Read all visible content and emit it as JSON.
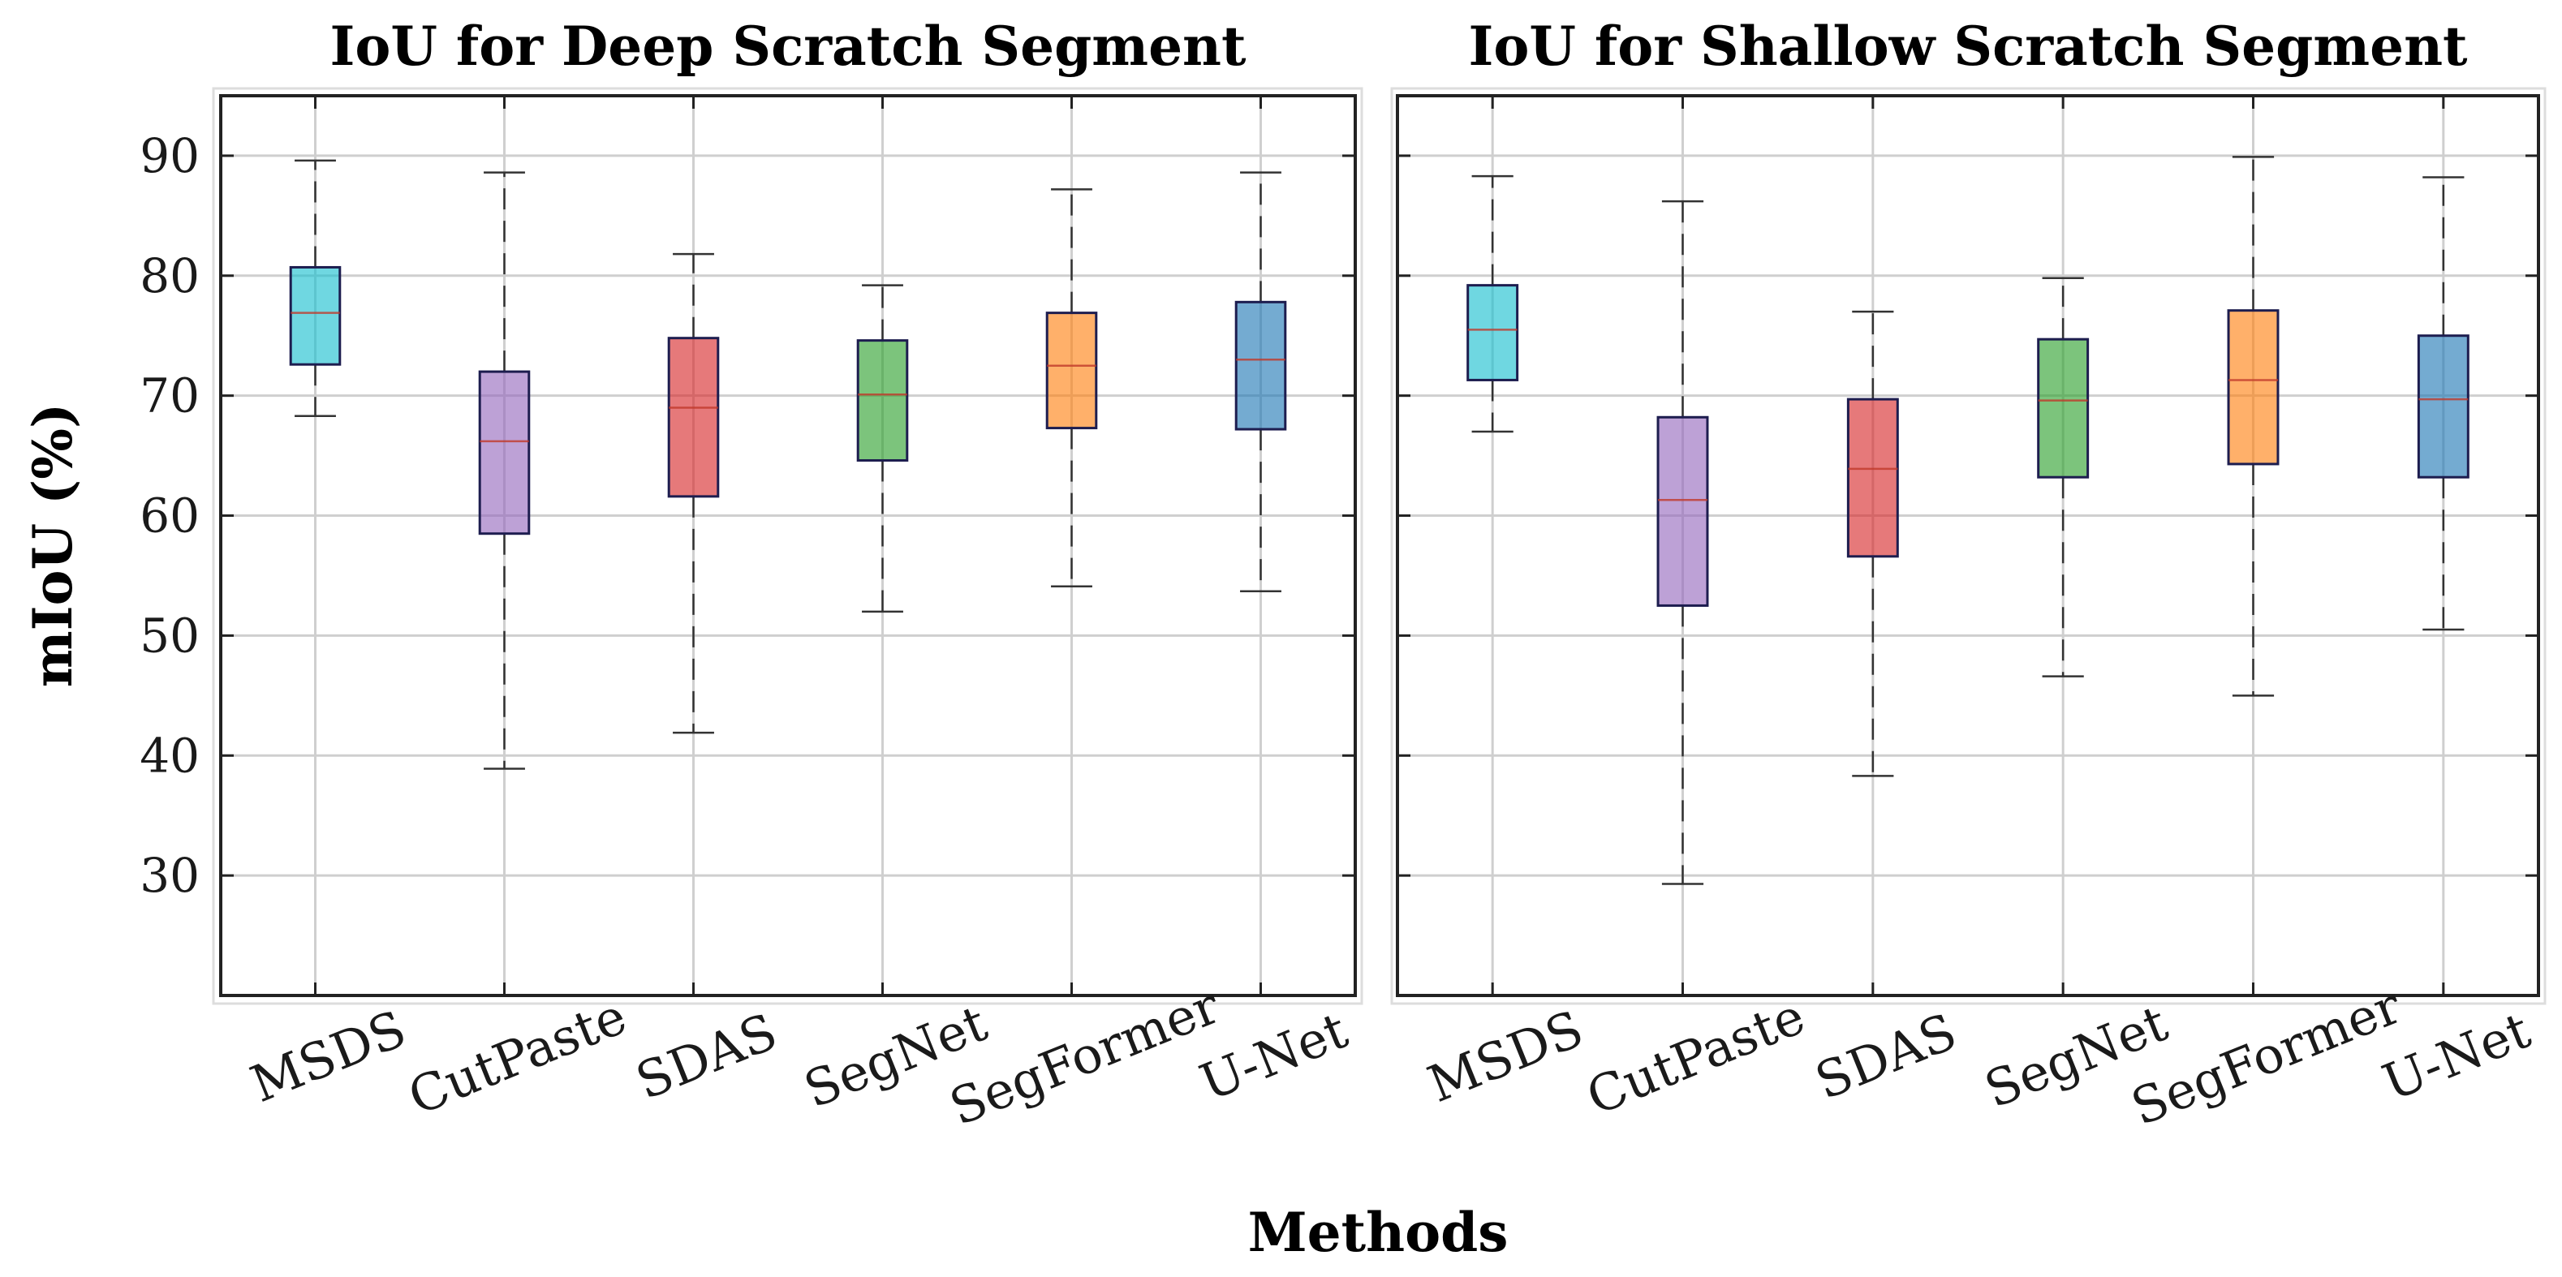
{
  "chart_data": [
    {
      "type": "box",
      "title": "IoU for Deep Scratch Segment",
      "xlabel": "Methods",
      "ylabel": "mIoU (%)",
      "ylim": [
        20,
        95
      ],
      "yticks": [
        30,
        40,
        50,
        60,
        70,
        80,
        90
      ],
      "grid": true,
      "categories": [
        "MSDS",
        "CutPaste",
        "SDAS",
        "SegNet",
        "SegFormer",
        "U-Net"
      ],
      "series": [
        {
          "name": "MSDS",
          "color": "#17becf",
          "median_color": "#c0392b",
          "min": 68.3,
          "q1": 72.6,
          "median": 76.9,
          "q3": 80.7,
          "max": 89.6
        },
        {
          "name": "CutPaste",
          "color": "#9467bd",
          "median_color": "#c0392b",
          "min": 38.9,
          "q1": 58.5,
          "median": 66.2,
          "q3": 72.0,
          "max": 88.6
        },
        {
          "name": "SDAS",
          "color": "#d62728",
          "median_color": "#c0392b",
          "min": 41.9,
          "q1": 61.6,
          "median": 69.0,
          "q3": 74.8,
          "max": 81.8
        },
        {
          "name": "SegNet",
          "color": "#2ca02c",
          "median_color": "#c0392b",
          "min": 52.0,
          "q1": 64.6,
          "median": 70.1,
          "q3": 74.6,
          "max": 79.2
        },
        {
          "name": "SegFormer",
          "color": "#ff7f0e",
          "median_color": "#c0392b",
          "min": 54.1,
          "q1": 67.3,
          "median": 72.5,
          "q3": 76.9,
          "max": 87.2
        },
        {
          "name": "U-Net",
          "color": "#1f77b4",
          "median_color": "#c0392b",
          "min": 53.7,
          "q1": 67.2,
          "median": 73.0,
          "q3": 77.8,
          "max": 88.6
        }
      ]
    },
    {
      "type": "box",
      "title": "IoU for Shallow Scratch Segment",
      "xlabel": "Methods",
      "ylabel": "mIoU (%)",
      "ylim": [
        20,
        95
      ],
      "yticks": [
        30,
        40,
        50,
        60,
        70,
        80,
        90
      ],
      "grid": true,
      "categories": [
        "MSDS",
        "CutPaste",
        "SDAS",
        "SegNet",
        "SegFormer",
        "U-Net"
      ],
      "series": [
        {
          "name": "MSDS",
          "color": "#17becf",
          "median_color": "#c0392b",
          "min": 67.0,
          "q1": 71.3,
          "median": 75.5,
          "q3": 79.2,
          "max": 88.3
        },
        {
          "name": "CutPaste",
          "color": "#9467bd",
          "median_color": "#c0392b",
          "min": 29.3,
          "q1": 52.5,
          "median": 61.3,
          "q3": 68.2,
          "max": 86.2
        },
        {
          "name": "SDAS",
          "color": "#d62728",
          "median_color": "#c0392b",
          "min": 38.3,
          "q1": 56.6,
          "median": 63.9,
          "q3": 69.7,
          "max": 77.0
        },
        {
          "name": "SegNet",
          "color": "#2ca02c",
          "median_color": "#c0392b",
          "min": 46.6,
          "q1": 63.2,
          "median": 69.6,
          "q3": 74.7,
          "max": 79.8
        },
        {
          "name": "SegFormer",
          "color": "#ff7f0e",
          "median_color": "#c0392b",
          "min": 45.0,
          "q1": 64.3,
          "median": 71.3,
          "q3": 77.1,
          "max": 89.9
        },
        {
          "name": "U-Net",
          "color": "#1f77b4",
          "median_color": "#c0392b",
          "min": 50.5,
          "q1": 63.2,
          "median": 69.7,
          "q3": 75.0,
          "max": 88.2
        }
      ]
    }
  ]
}
